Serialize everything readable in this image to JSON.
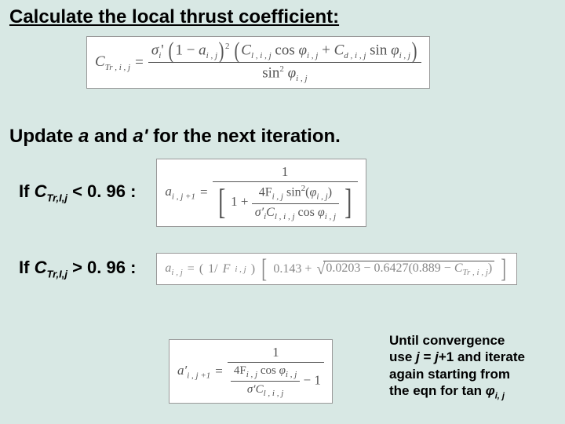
{
  "heading": "Calculate the local thrust coefficient:",
  "subheading": {
    "pre": "Update ",
    "a": "a",
    "mid": " and ",
    "ap": "a'",
    "post": " for the next iteration."
  },
  "cond1": {
    "pre": "If ",
    "var": "C",
    "sub": "Tr,I,j",
    "op": " < 0. 96 :"
  },
  "cond2": {
    "pre": "If ",
    "var": "C",
    "sub": "Tr,I,j",
    "op": " > 0. 96 :"
  },
  "note": {
    "l1": "Until convergence",
    "l2a": "use ",
    "l2j": "j",
    "l2b": " = ",
    "l2j2": "j",
    "l2c": "+1 and iterate",
    "l3": "again starting from",
    "l4a": "the eqn for tan ",
    "l4phi": "φ",
    "l4sub": "i, j"
  },
  "eq1": {
    "lhs_C": "C",
    "lhs_sub": "Tr , i , j",
    "eq": " = ",
    "num_sig": "σ",
    "num_i": "i",
    "num_prime": "'",
    "num_p1a": "1 − ",
    "num_a": "a",
    "num_aij": "i , j",
    "num_sq": "2",
    "num_Cl": "C",
    "num_Cl_sub": "l , i , j",
    "num_cos": " cos ",
    "num_phi": "φ",
    "num_phi_sub": "i , j",
    "num_plus": " + ",
    "num_Cd": "C",
    "num_Cd_sub": "d , i , j",
    "num_sin": " sin ",
    "num_phi2": "φ",
    "num_phi2_sub": "i , j",
    "den_sin": "sin",
    "den_sq": "2",
    "den_phi": "φ",
    "den_phi_sub": "i , j"
  },
  "eq2": {
    "lhs_a": "a",
    "lhs_sub": "i , j +1",
    "eq": " = ",
    "num_one": "1",
    "den_one": "1 + ",
    "den_in_num": "4F",
    "den_in_num_sub": "i , j",
    "den_in_num_sin": " sin",
    "den_in_num_sq": "2",
    "den_in_num_phi": "φ",
    "den_in_num_phi_sub": "i , j",
    "den_in_den_sig": "σ′",
    "den_in_den_i": "i",
    "den_in_den_C": "C",
    "den_in_den_C_sub": "l , i , j",
    "den_in_den_cos": " cos ",
    "den_in_den_phi": "φ",
    "den_in_den_phi_sub": "i , j"
  },
  "eq3": {
    "lhs_a": "a",
    "lhs_sub": "i , j",
    "eq": " = ",
    "p1": "1/",
    "p1F": "F",
    "p1_sub": "i , j",
    "c1": "0.143 + ",
    "r1": "0.0203 − 0.6427",
    "r2a": "0.889 − ",
    "r2C": "C",
    "r2_sub": "Tr , i , j"
  },
  "eq4": {
    "lhs_a": "a′",
    "lhs_sub": "i , j +1",
    "eq": " = ",
    "num_one": "1",
    "den_num": "4F",
    "den_num_sub": "i , j",
    "den_num_cos": " cos ",
    "den_num_phi": "φ",
    "den_num_phi_sub": "i , j",
    "den_den_sig": "σ′",
    "den_den_C": "C",
    "den_den_C_sub": "l , i , j",
    "den_minus": " − 1"
  },
  "colors": {
    "bg": "#d8e8e4",
    "box_bg": "#ffffff",
    "text": "#000000",
    "eq_text": "#666666"
  }
}
